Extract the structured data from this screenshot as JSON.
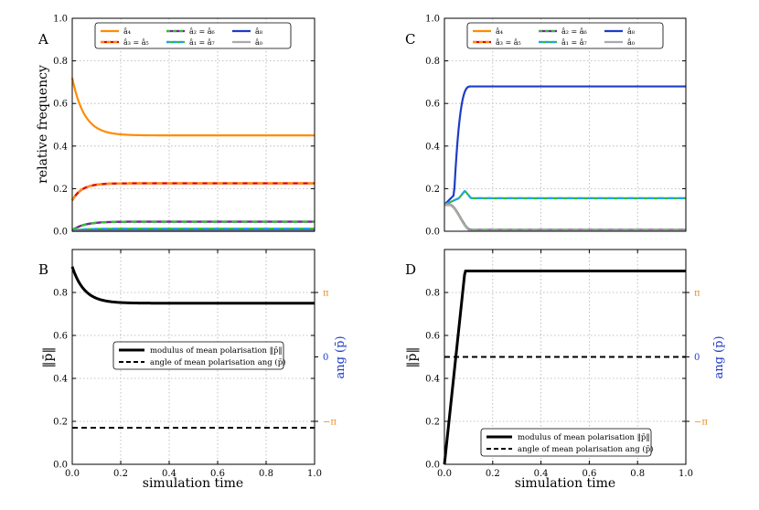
{
  "chart_data": [
    {
      "id": "A",
      "type": "line",
      "panel_label": "A",
      "ylabel": "relative frequency",
      "xlim": [
        0,
        1
      ],
      "ylim": [
        0,
        1
      ],
      "yticks": [
        "0.0",
        "0.2",
        "0.4",
        "0.6",
        "0.8",
        "1.0"
      ],
      "grid": true,
      "legend": [
        "â₄",
        "â₃ = â₅",
        "â₂ = â₆",
        "â₁ = â₇",
        "â₈",
        "â₀"
      ],
      "series": [
        {
          "name": "â₄",
          "color": "#ff8c00",
          "style": "solid",
          "start": 0.72,
          "end": 0.45,
          "tau": 0.05
        },
        {
          "name": "â₃ = â₅",
          "color": "#ff8c00",
          "color2": "#e60000",
          "style": "dashed",
          "start": 0.145,
          "end": 0.225,
          "tau": 0.04
        },
        {
          "name": "â₂ = â₆",
          "color": "#33bb33",
          "color2": "#7a1fa2",
          "style": "dashed",
          "start": 0.005,
          "end": 0.045,
          "tau": 0.05
        },
        {
          "name": "â₁ = â₇",
          "color": "#1ea0ff",
          "color2": "#33bb33",
          "style": "solid",
          "start": 0.003,
          "end": 0.012,
          "tau": 0.05
        },
        {
          "name": "â₈",
          "color": "#1e3cc8",
          "style": "solid",
          "start": 0.002,
          "end": 0.004,
          "tau": 0.05
        },
        {
          "name": "â₀",
          "color": "#aaaaaa",
          "style": "solid",
          "start": 0.001,
          "end": 0.001,
          "tau": 0.05
        }
      ]
    },
    {
      "id": "B",
      "type": "line",
      "panel_label": "B",
      "ylabel": "‖p̄‖",
      "ylabel_right": "ang (p̄)",
      "xlabel": "simulation time",
      "xlim": [
        0,
        1
      ],
      "ylim": [
        0,
        1
      ],
      "yticks": [
        "0.0",
        "0.2",
        "0.4",
        "0.6",
        "0.8"
      ],
      "xticks": [
        "0.0",
        "0.2",
        "0.4",
        "0.6",
        "0.8",
        "1.0"
      ],
      "right_ticks": [
        {
          "label": "π",
          "value": 0.8
        },
        {
          "label": "0",
          "value": 0.5
        },
        {
          "label": "−π",
          "value": 0.2
        }
      ],
      "grid": true,
      "legend": [
        "modulus of mean polarisation ‖p̄‖",
        "angle of mean polarisation ang (p̄)"
      ],
      "series": [
        {
          "name": "modulus of mean polarisation ‖p̄‖",
          "shape": "decay",
          "start": 0.92,
          "end": 0.75,
          "tau": 0.05
        },
        {
          "name": "angle of mean polarisation ang (p̄)",
          "shape": "const",
          "value": 0.17
        }
      ]
    },
    {
      "id": "C",
      "type": "line",
      "panel_label": "C",
      "xlim": [
        0,
        1
      ],
      "ylim": [
        0,
        1
      ],
      "yticks": [
        "0.0",
        "0.2",
        "0.4",
        "0.6",
        "0.8",
        "1.0"
      ],
      "grid": true,
      "legend": [
        "â₄",
        "â₃ = â₅",
        "â₂ = â₆",
        "â₁ = â₇",
        "â₈",
        "â₀"
      ],
      "series": [
        {
          "name": "â₈",
          "color": "#1e3cc8",
          "style": "solid",
          "shape": "rise",
          "start": 0.125,
          "end": 0.68
        },
        {
          "name": "â₁ = â₇",
          "color": "#1ea0ff",
          "color2": "#33bb33",
          "style": "solid",
          "shape": "bump",
          "start": 0.125,
          "peak": 0.19,
          "end": 0.155
        },
        {
          "name": "â₄",
          "color": "#ff8c00",
          "style": "solid",
          "shape": "fall",
          "start": 0.125,
          "end": 0.005
        },
        {
          "name": "â₃ = â₅",
          "color": "#ff8c00",
          "color2": "#e60000",
          "style": "dashed",
          "shape": "fall",
          "start": 0.125,
          "end": 0.005
        },
        {
          "name": "â₂ = â₆",
          "color": "#33bb33",
          "color2": "#7a1fa2",
          "style": "dashed",
          "shape": "fall",
          "start": 0.125,
          "end": 0.006
        },
        {
          "name": "â₀",
          "color": "#aaaaaa",
          "style": "solid",
          "shape": "fall",
          "start": 0.125,
          "end": 0.003
        }
      ]
    },
    {
      "id": "D",
      "type": "line",
      "panel_label": "D",
      "ylabel": "‖p̄‖",
      "ylabel_right": "ang (p̄)",
      "xlabel": "simulation time",
      "xlim": [
        0,
        1
      ],
      "ylim": [
        0,
        1
      ],
      "yticks": [
        "0.0",
        "0.2",
        "0.4",
        "0.6",
        "0.8"
      ],
      "xticks": [
        "0.0",
        "0.2",
        "0.4",
        "0.6",
        "0.8",
        "1.0"
      ],
      "right_ticks": [
        {
          "label": "π",
          "value": 0.8
        },
        {
          "label": "0",
          "value": 0.5
        },
        {
          "label": "−π",
          "value": 0.2
        }
      ],
      "grid": true,
      "legend": [
        "modulus of mean polarisation ‖p̄‖",
        "angle of mean polarisation ang (p̄)"
      ],
      "series": [
        {
          "name": "modulus of mean polarisation ‖p̄‖",
          "shape": "ramp",
          "start": 0.0,
          "end": 0.9,
          "t_end": 0.085
        },
        {
          "name": "angle of mean polarisation ang (p̄)",
          "shape": "const",
          "value": 0.5
        }
      ]
    }
  ]
}
